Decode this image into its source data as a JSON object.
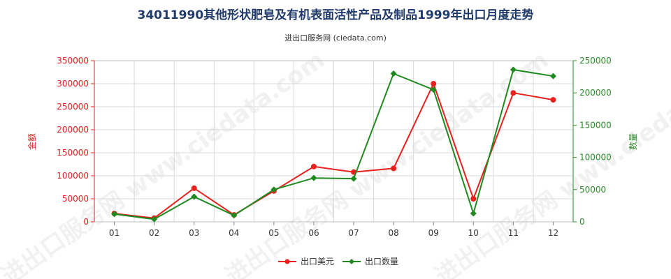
{
  "chart_data": {
    "type": "line",
    "title": "34011990其他形状肥皂及有机表面活性产品及制品1999年出口月度走势",
    "subtitle": "进出口服务网 (ciedata.com)",
    "watermark": "进出口服务网 www.ciedata.com",
    "categories": [
      "01",
      "02",
      "03",
      "04",
      "05",
      "06",
      "07",
      "08",
      "09",
      "10",
      "11",
      "12"
    ],
    "y_left": {
      "label": "金额",
      "ylim": [
        0,
        350000
      ],
      "ticks": [
        0,
        50000,
        100000,
        150000,
        200000,
        250000,
        300000,
        350000
      ]
    },
    "y_right": {
      "label": "数量",
      "ylim": [
        0,
        250000
      ],
      "ticks": [
        0,
        50000,
        100000,
        150000,
        200000,
        250000
      ]
    },
    "grid": true,
    "legend_position": "bottom-center",
    "series": [
      {
        "name": "出口美元",
        "axis": "left",
        "color": "#e8201e",
        "values": [
          18000,
          8000,
          73000,
          15000,
          67000,
          120000,
          108000,
          116000,
          300000,
          50000,
          280000,
          265000
        ]
      },
      {
        "name": "出口数量",
        "axis": "right",
        "color": "#1f8a1f",
        "values": [
          12000,
          4000,
          39000,
          10000,
          50000,
          68000,
          67000,
          230000,
          205000,
          13000,
          236000,
          226000
        ]
      }
    ]
  }
}
